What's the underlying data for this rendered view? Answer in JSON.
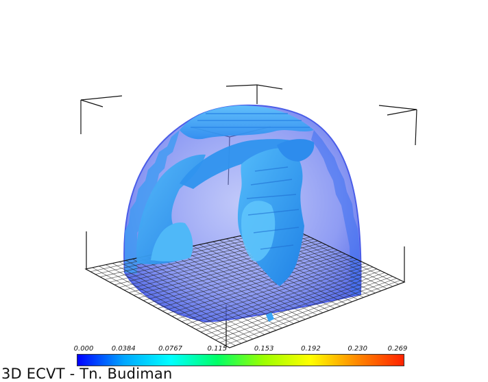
{
  "title": "3D ECVT - Tn. Budiman",
  "colorbar": {
    "ticks": [
      "0.000",
      "0.0384",
      "0.0767",
      "0.115",
      "0.153",
      "0.192",
      "0.230",
      "0.269"
    ],
    "colors": [
      "#0000ff",
      "#00a6ff",
      "#00ffff",
      "#00ff66",
      "#9cff00",
      "#ffff00",
      "#ff8800",
      "#ff2200"
    ]
  },
  "colors": {
    "shell": "#6f7ff2",
    "shell_edge": "#4a5de8",
    "body": "#2f9ff0",
    "body_light": "#5cc3fb",
    "body_dark": "#1f73d8",
    "grid": "#222222"
  }
}
